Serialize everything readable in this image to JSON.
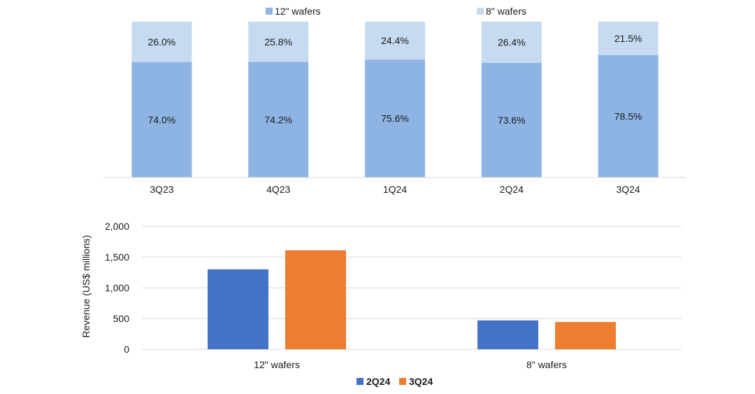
{
  "chart_data": [
    {
      "type": "bar",
      "stacked": true,
      "unit": "%",
      "categories": [
        "3Q23",
        "4Q23",
        "1Q24",
        "2Q24",
        "3Q24"
      ],
      "series": [
        {
          "name": "12\" wafers",
          "values": [
            74.0,
            74.2,
            75.6,
            73.6,
            78.5
          ],
          "labels": [
            "74.0%",
            "74.2%",
            "75.6%",
            "73.6%",
            "78.5%"
          ],
          "color": "#8eb4e3"
        },
        {
          "name": "8\" wafers",
          "values": [
            26.0,
            25.8,
            24.4,
            26.4,
            21.5
          ],
          "labels": [
            "26.0%",
            "25.8%",
            "24.4%",
            "26.4%",
            "21.5%"
          ],
          "color": "#c6daf1"
        }
      ],
      "ylim": [
        0,
        100
      ],
      "legend": "top-center",
      "title": "",
      "xlabel": "",
      "ylabel": ""
    },
    {
      "type": "bar",
      "categories": [
        "12\" wafers",
        "8\" wafers"
      ],
      "series": [
        {
          "name": "2Q24",
          "values": [
            1300,
            470
          ],
          "color": "#4472c4"
        },
        {
          "name": "3Q24",
          "values": [
            1610,
            445
          ],
          "color": "#ed7d31"
        }
      ],
      "ylim": [
        0,
        2000
      ],
      "yticks": [
        0,
        500,
        1000,
        1500,
        2000
      ],
      "ytick_labels": [
        "0",
        "500",
        "1,000",
        "1,500",
        "2,000"
      ],
      "ylabel": "Revenue (US$  millions)",
      "xlabel": "",
      "title": "",
      "grid": true,
      "legend": "bottom-center"
    }
  ]
}
